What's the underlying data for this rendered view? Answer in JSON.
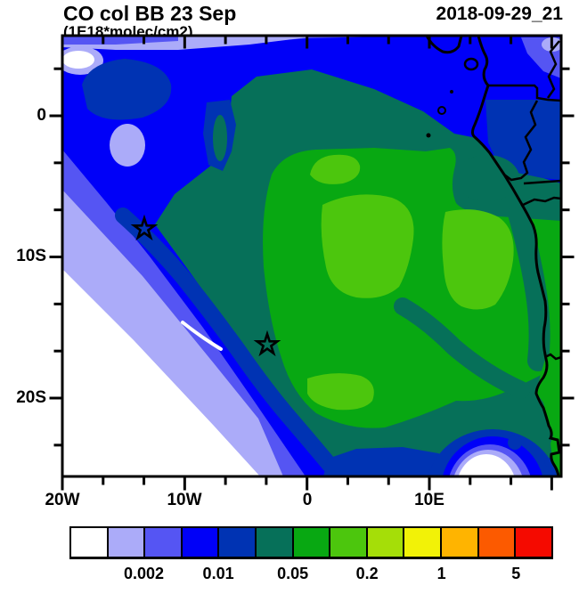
{
  "title": "CO col BB 23 Sep",
  "subtitle": "(1E18*molec/cm2)",
  "datestamp": "2018-09-29_21",
  "axes": {
    "y_tick_labels": [
      "0",
      "10S",
      "20S"
    ],
    "x_tick_labels": [
      "20W",
      "10W",
      "0",
      "10E"
    ]
  },
  "colorbar": {
    "tick_labels": [
      "0.002",
      "0.01",
      "0.05",
      "0.2",
      "1",
      "5"
    ],
    "colors": [
      "#FFFFFF",
      "#ABABF9",
      "#5555F3",
      "#0000F8",
      "#0033B3",
      "#067059",
      "#08A812",
      "#4CC60D",
      "#A5DE08",
      "#F2F207",
      "#FFB400",
      "#FC5A00",
      "#F50A00"
    ]
  },
  "chart_data": {
    "type": "heatmap",
    "subtype": "filled-contour-geographic-map",
    "title": "CO col BB 23 Sep",
    "units": "1E18*molec/cm2",
    "run_label": "2018-09-29_21",
    "lon_tick_labels": [
      "20W",
      "10W",
      "0",
      "10E"
    ],
    "lat_tick_labels": [
      "0",
      "10S",
      "20S"
    ],
    "lon_range_approx_deg": [
      -20,
      21
    ],
    "lat_range_approx_deg": [
      -25.6,
      5.7
    ],
    "levels_labeled": [
      0.002,
      0.01,
      0.05,
      0.2,
      1,
      5
    ],
    "n_color_bins": 13,
    "bin_colors": [
      "#FFFFFF",
      "#ABABF9",
      "#5555F3",
      "#0000F8",
      "#0033B3",
      "#067059",
      "#08A812",
      "#4CC60D",
      "#A5DE08",
      "#F2F207",
      "#FFB400",
      "#FC5A00",
      "#F50A00"
    ],
    "max_band_visible_on_map": "light-green bin (between 0.05 and 0.2 labeled levels)",
    "markers": [
      {
        "shape": "star-outline",
        "lon_approx_deg": -13.3,
        "lat_approx_deg": -8.1
      },
      {
        "shape": "star-outline",
        "lon_approx_deg": -3.3,
        "lat_approx_deg": -16.3
      }
    ],
    "features": [
      "clean-air white region in SW corner with lavender/periwinkle/blue fringe bands",
      "broad blue region (NW) with navy patches",
      "dark teal band surrounding a large green plume centered off Angola",
      "light-green plume cores in map center",
      "small white/lavender/blue pocket at bottom center near the Namibian coast",
      "African coastline from Gulf of Guinea to Namibia with country borders",
      "islands: Bioko, Principe, Sao Tome",
      "blue band over land in the NE (Nigeria/Cameroon)"
    ]
  }
}
